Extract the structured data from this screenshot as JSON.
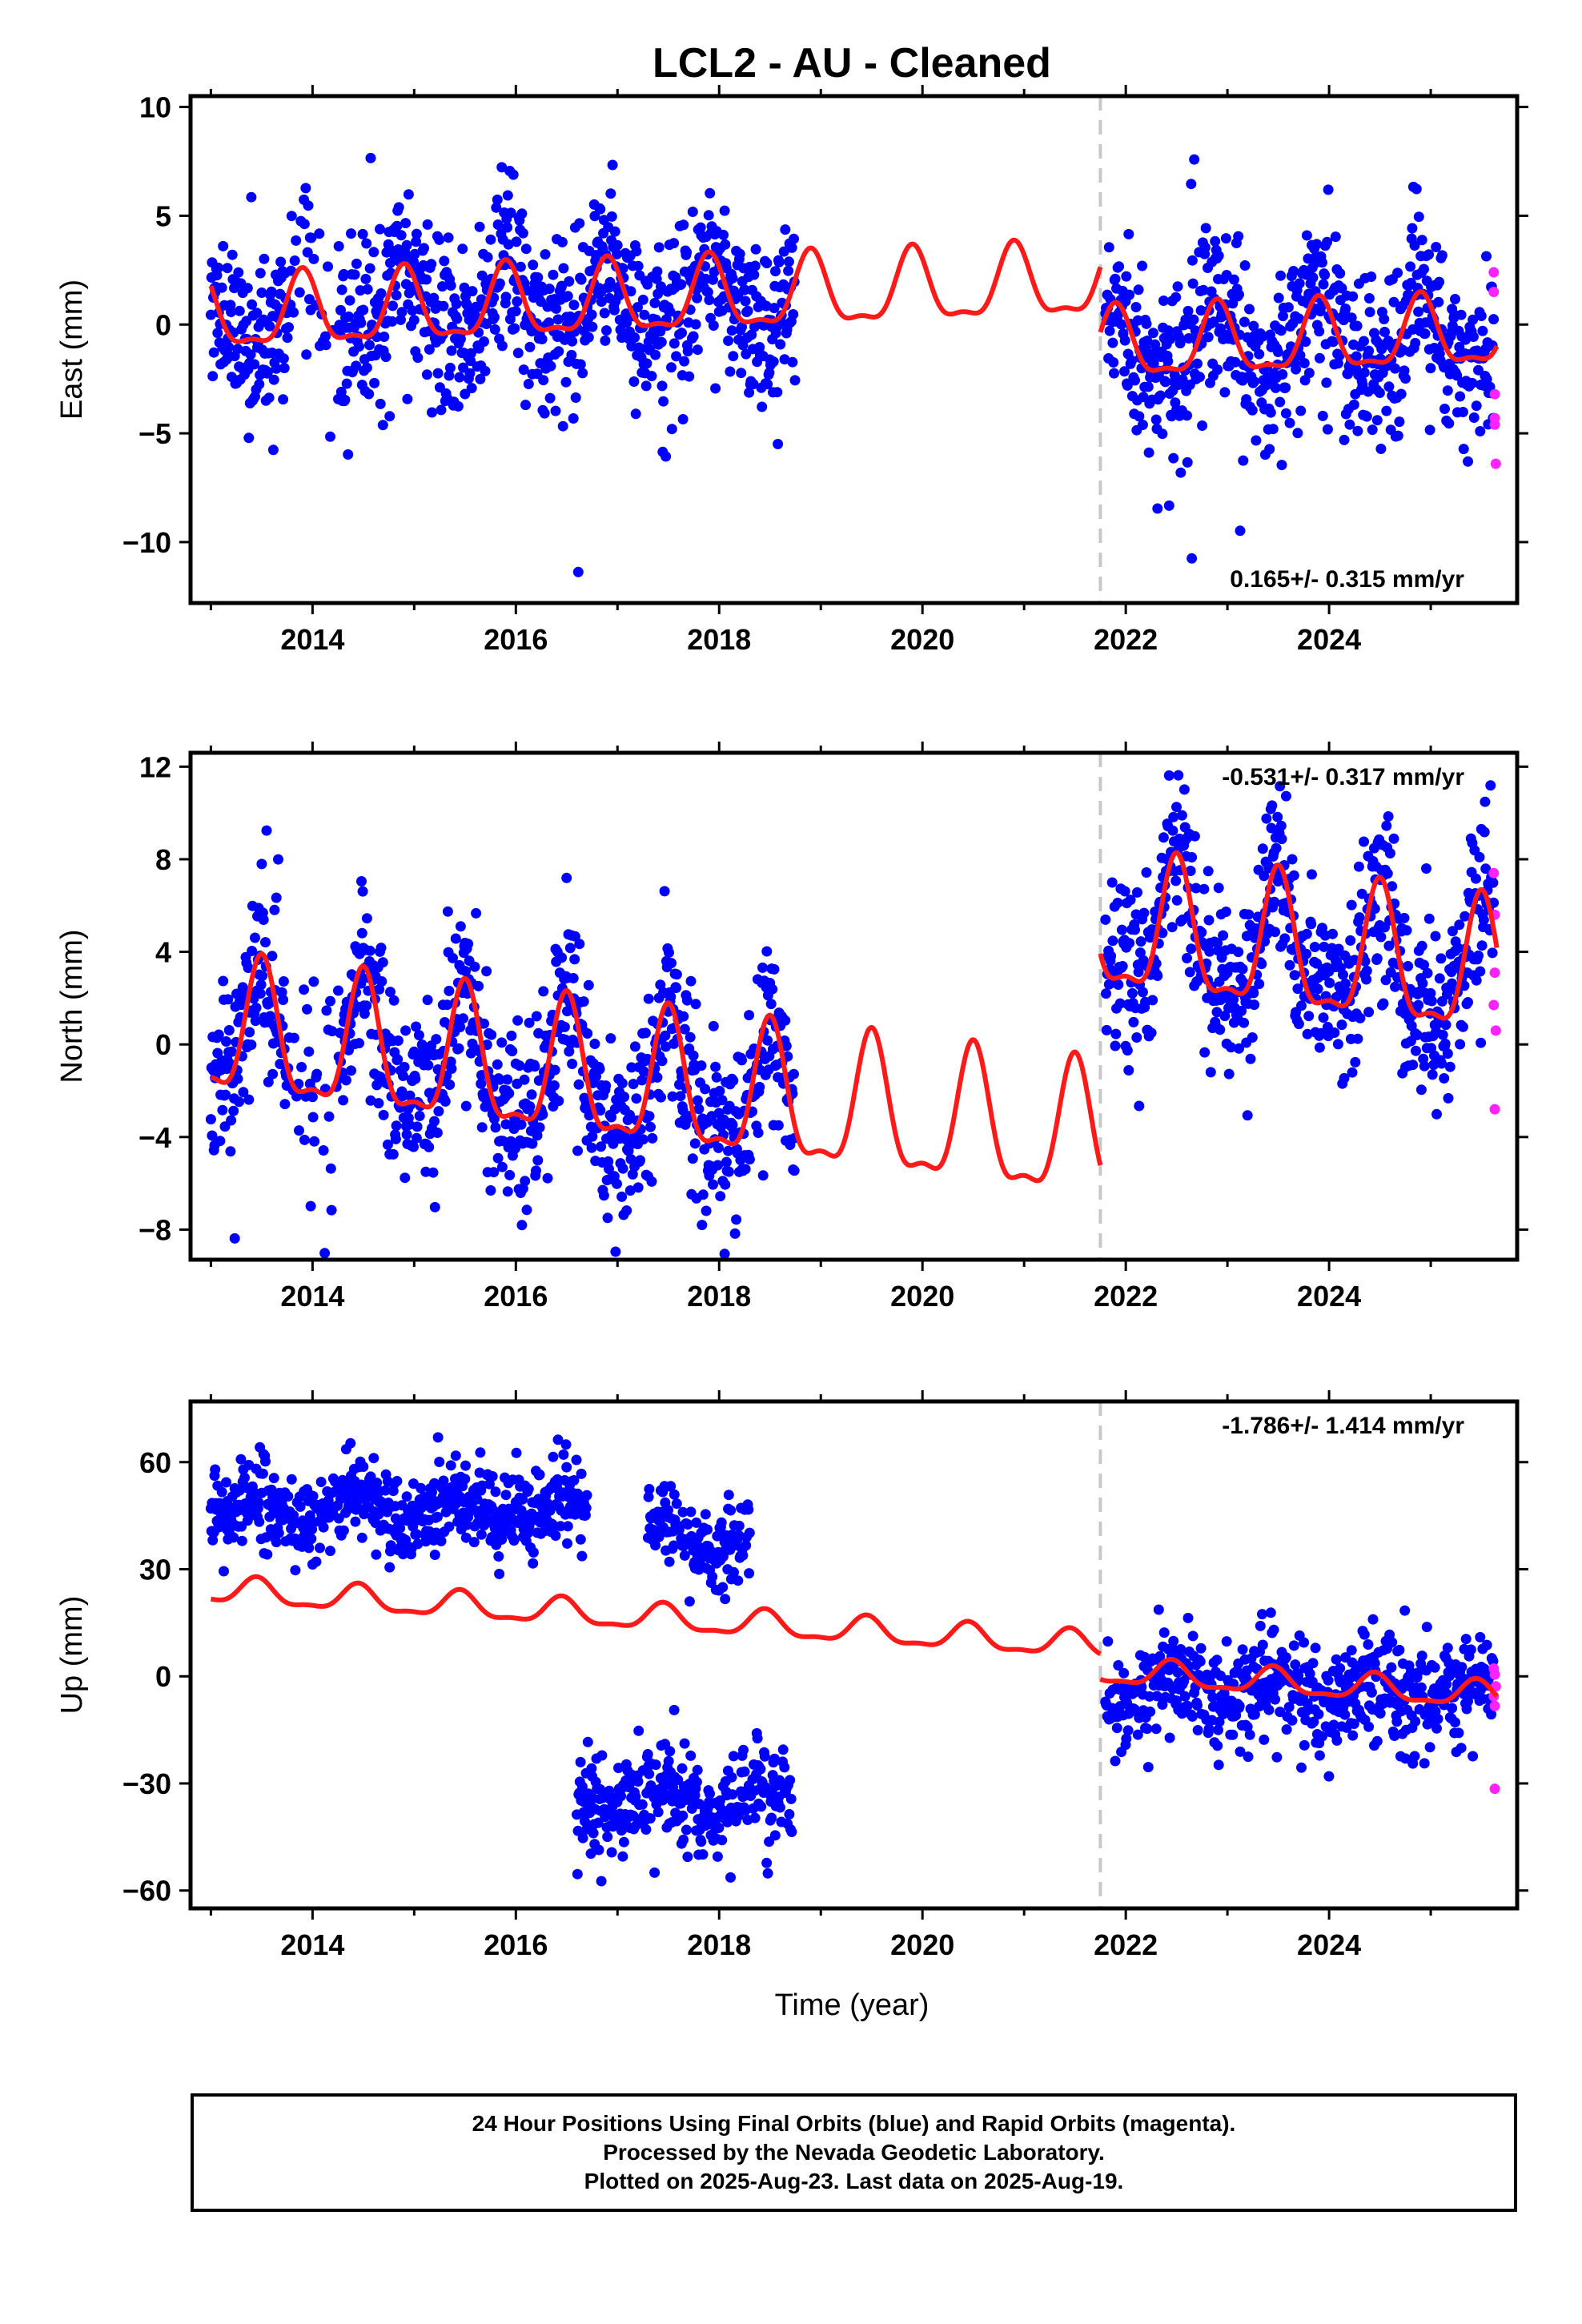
{
  "title": "LCL2  - AU - Cleaned",
  "xlabel": "Time (year)",
  "colors": {
    "final": "#0000ff",
    "rapid": "#ff22ff",
    "model": "#ff1a1a",
    "offset_line": "#c8c8c8",
    "frame": "#000000"
  },
  "footer": {
    "line1": "24 Hour Positions Using Final Orbits (blue) and Rapid Orbits (magenta).",
    "line2": "Processed by the Nevada Geodetic Laboratory.",
    "line3": "Plotted on 2025-Aug-23. Last data on 2025-Aug-19."
  },
  "chart_data": [
    {
      "type": "scatter",
      "name": "east",
      "ylabel": "East (mm)",
      "rate_label": "0.165+/- 0.315 mm/yr",
      "rate_position": "bottom-right",
      "xlim": [
        2012.8,
        2025.85
      ],
      "ylim": [
        -12.8,
        10.5
      ],
      "xticks": [
        2014,
        2016,
        2018,
        2020,
        2022,
        2024
      ],
      "yticks": [
        10,
        5,
        0,
        -5,
        -10
      ],
      "ytick_labels": [
        "10",
        "5",
        "0",
        "−10"
      ],
      "ytick_labels_full": [
        "10",
        "5",
        "0",
        "−5",
        "−10"
      ],
      "offset_epoch": 2021.75,
      "data_gap": [
        2018.75,
        2021.8
      ],
      "seasonal_amplitude": 1.6,
      "scatter_sd": 2.0,
      "model_segments": [
        {
          "start": 2013.0,
          "end": 2021.75,
          "offset0": 0.3,
          "rate": 0.18,
          "amp": 1.6,
          "phase_peak": 0.9
        },
        {
          "start": 2021.75,
          "end": 2025.65,
          "offset0": -1.1,
          "rate": 0.165,
          "amp": 1.55,
          "phase_peak": 0.9
        }
      ],
      "rapid_points": [
        [
          2025.62,
          2.4
        ],
        [
          2025.62,
          1.5
        ],
        [
          2025.63,
          -3.2
        ],
        [
          2025.63,
          -4.6
        ],
        [
          2025.64,
          -6.4
        ],
        [
          2025.63,
          -4.3
        ]
      ]
    },
    {
      "type": "scatter",
      "name": "north",
      "ylabel": "North (mm)",
      "rate_label": "-0.531+/- 0.317 mm/yr",
      "rate_position": "top-right",
      "xlim": [
        2012.8,
        2025.85
      ],
      "ylim": [
        -9.3,
        12.6
      ],
      "xticks": [
        2014,
        2016,
        2018,
        2020,
        2022,
        2024
      ],
      "yticks": [
        12,
        8,
        4,
        0,
        -4,
        -8
      ],
      "ytick_labels_full": [
        "12",
        "8",
        "4",
        "0",
        "−4",
        "−8"
      ],
      "offset_epoch": 2021.75,
      "data_gap": [
        2018.75,
        2021.8
      ],
      "seasonal_amplitude": 2.8,
      "scatter_sd": 1.9,
      "model_segments": [
        {
          "start": 2013.0,
          "end": 2021.75,
          "offset0": 0.4,
          "rate": -0.53,
          "amp": 2.8,
          "phase_peak": 0.5
        },
        {
          "start": 2021.75,
          "end": 2025.65,
          "offset0": 4.9,
          "rate": -0.53,
          "amp": 2.8,
          "phase_peak": 0.5
        }
      ],
      "rapid_points": [
        [
          2025.62,
          7.4
        ],
        [
          2025.63,
          5.6
        ],
        [
          2025.63,
          3.1
        ],
        [
          2025.62,
          1.7
        ],
        [
          2025.64,
          0.6
        ],
        [
          2025.63,
          -2.8
        ]
      ]
    },
    {
      "type": "scatter",
      "name": "up",
      "ylabel": "Up (mm)",
      "rate_label": "-1.786+/- 1.414 mm/yr",
      "rate_position": "top-right",
      "xlim": [
        2012.8,
        2025.85
      ],
      "ylim": [
        -65,
        77
      ],
      "xticks": [
        2014,
        2016,
        2018,
        2020,
        2022,
        2024
      ],
      "yticks": [
        60,
        30,
        0,
        -30,
        -60
      ],
      "ytick_labels_full": [
        "60",
        "30",
        "0",
        "−30",
        "−60"
      ],
      "offset_epoch": 2021.75,
      "data_gap": [
        2018.75,
        2021.8
      ],
      "seasonal_amplitude": 3.5,
      "scatter_sd": 7.0,
      "clusters": [
        {
          "start": 2013.0,
          "end": 2016.7,
          "center": 47,
          "sd": 7
        },
        {
          "start": 2017.3,
          "end": 2018.3,
          "center": 38,
          "sd": 7
        },
        {
          "start": 2016.6,
          "end": 2018.72,
          "center": -35,
          "sd": 8
        },
        {
          "start": 2021.8,
          "end": 2025.62,
          "center": -4,
          "sd": 9
        }
      ],
      "model_segments": [
        {
          "start": 2013.0,
          "end": 2021.75,
          "offset0": 24,
          "rate": -1.786,
          "amp": 3.5,
          "phase_peak": 0.45
        },
        {
          "start": 2021.75,
          "end": 2025.65,
          "offset0": 1.3,
          "rate": -1.786,
          "amp": 3.5,
          "phase_peak": 0.45
        }
      ],
      "rapid_points": [
        [
          2025.62,
          2.2
        ],
        [
          2025.63,
          0.5
        ],
        [
          2025.64,
          -2.8
        ],
        [
          2025.62,
          -5.6
        ],
        [
          2025.63,
          -8.3
        ],
        [
          2025.63,
          -31.5
        ]
      ]
    }
  ]
}
